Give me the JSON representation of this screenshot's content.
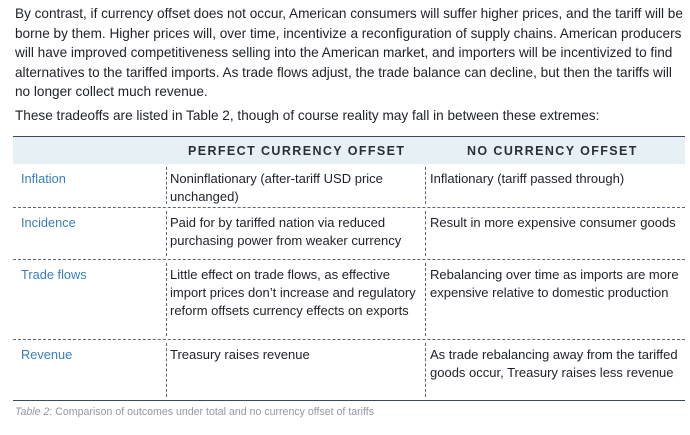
{
  "body": {
    "paragraph1": "By contrast, if currency offset does not occur, American consumers will suffer higher prices, and the tariff will be borne by them. Higher prices will, over time, incentivize a reconfiguration of supply chains. American producers will have improved competitiveness selling into the American market, and importers will be incentivized to find alternatives to the tariffed imports. As trade flows adjust, the trade balance can decline, but then the tariffs will no longer collect much revenue.",
    "paragraph2": "These tradeoffs are listed in Table 2, though of course reality may fall in between these extremes:"
  },
  "table": {
    "headers": [
      "PERFECT CURRENCY OFFSET",
      "NO CURRENCY OFFSET"
    ],
    "rows": [
      {
        "label": "Inflation",
        "perfect": "Noninflationary (after-tariff USD price unchanged)",
        "none": "Inflationary (tariff passed through)"
      },
      {
        "label": "Incidence",
        "perfect": "Paid for by tariffed nation via reduced purchasing power from weaker currency",
        "none": "Result in more expensive consumer goods"
      },
      {
        "label": "Trade flows",
        "perfect": "Little effect on trade flows, as effective import prices don’t increase and regulatory reform offsets currency effects on exports",
        "none": "Rebalancing over time as imports are more expensive relative to domestic production"
      },
      {
        "label": "Revenue",
        "perfect": "Treasury raises revenue",
        "none": "As trade rebalancing away from the tariffed goods occur, Treasury raises less revenue"
      }
    ]
  },
  "caption": {
    "label": "Table 2",
    "text": ": Comparison of outcomes under total and no currency offset of tariffs"
  },
  "colors": {
    "header_bg": "#e7f0f5",
    "row_label": "#3a7fb5",
    "caption": "#9099a3"
  }
}
